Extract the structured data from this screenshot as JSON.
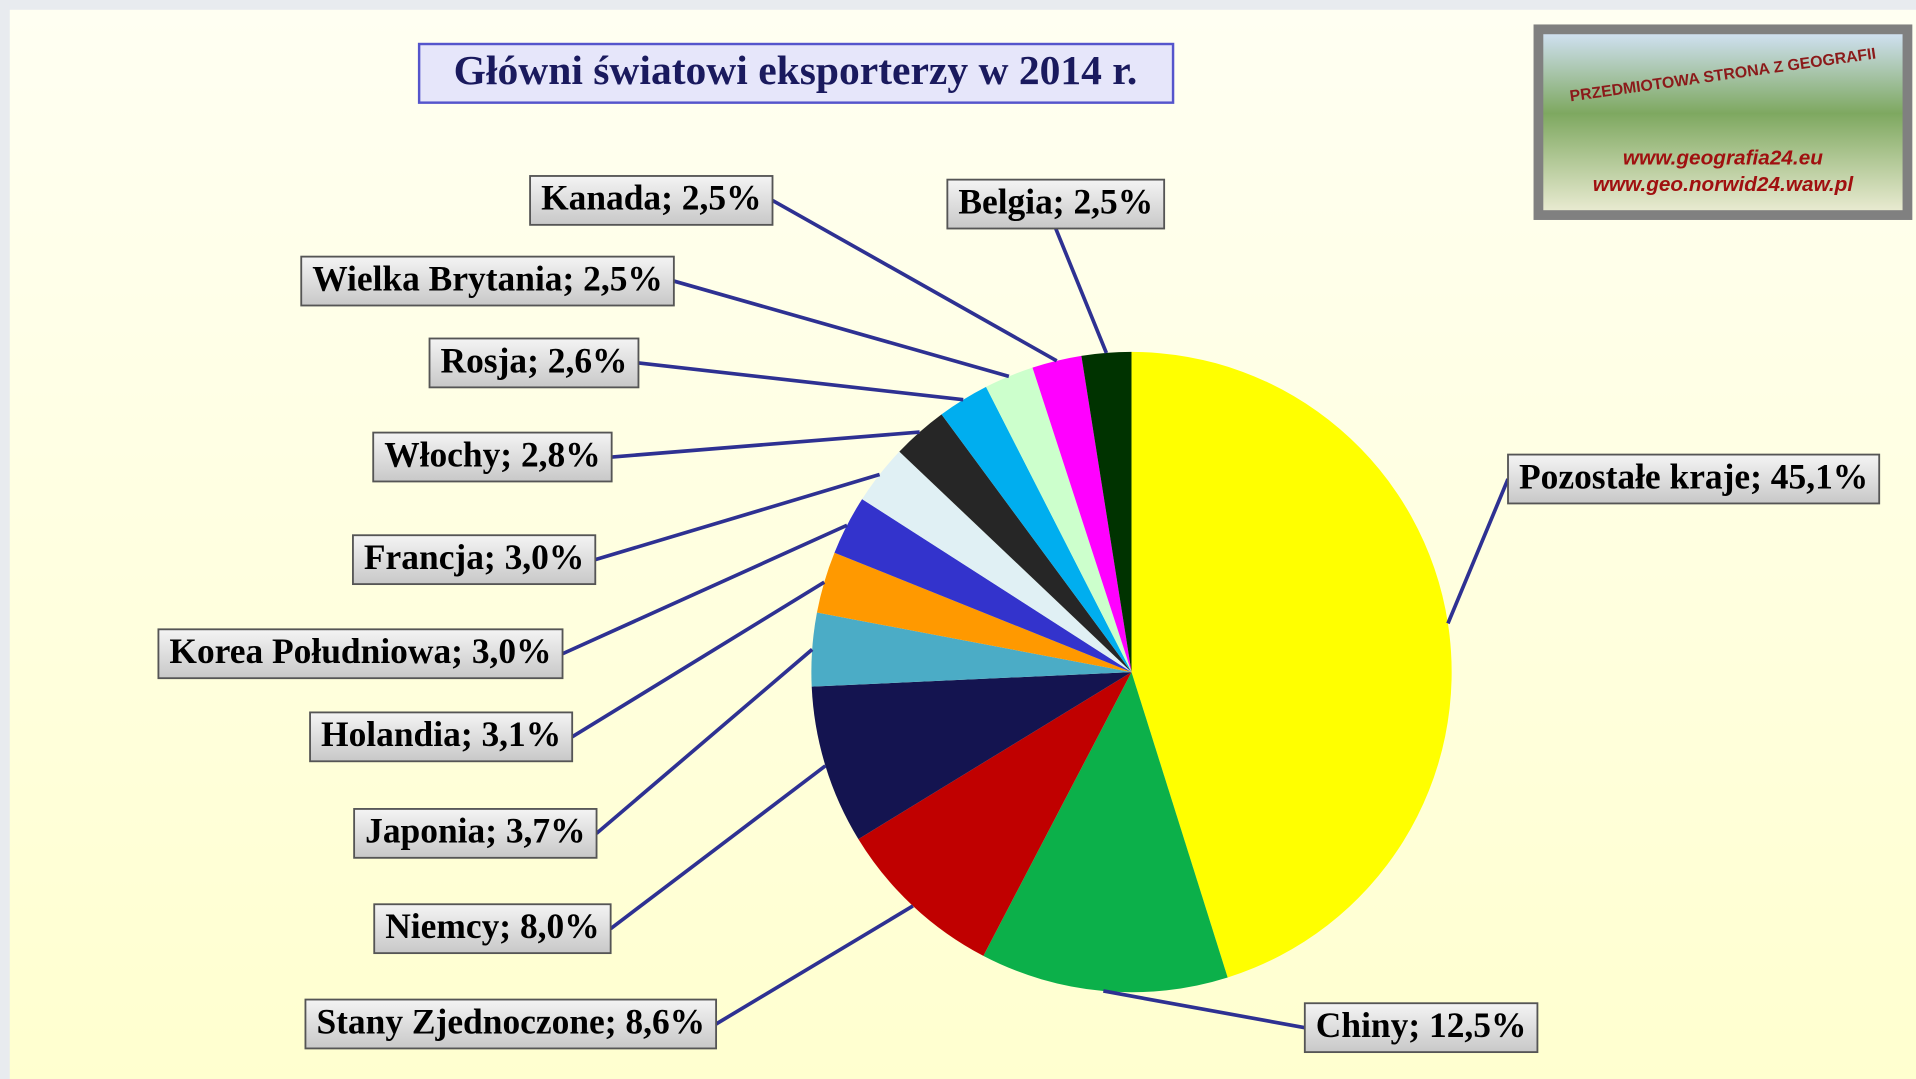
{
  "chart_data": {
    "type": "pie",
    "title": "Główni światowi eksporterzy w 2014 r.",
    "values": [
      45.1,
      12.5,
      8.6,
      8.0,
      3.7,
      3.1,
      3.0,
      3.0,
      2.8,
      2.6,
      2.5,
      2.5,
      2.5
    ],
    "value_labels": [
      "Pozostałe kraje; 45,1%",
      "Chiny; 12,5%",
      "Stany Zjednoczone; 8,6%",
      "Niemcy; 8,0%",
      "Japonia; 3,7%",
      "Holandia; 3,1%",
      "Korea Południowa; 3,0%",
      "Francja; 3,0%",
      "Włochy; 2,8%",
      "Rosja; 2,6%",
      "Wielka Brytania; 2,5%",
      "Kanada; 2,5%",
      "Belgia; 2,5%"
    ],
    "colors": [
      "#ffff00",
      "#0cb04a",
      "#c00000",
      "#141450",
      "#4bacc6",
      "#ff9900",
      "#3333cc",
      "#e0f0f4",
      "#262626",
      "#00aeef",
      "#ccffcc",
      "#ff00ff",
      "#003300"
    ]
  },
  "logo": {
    "title": "PRZEDMIOTOWA STRONA Z GEOGRAFII",
    "urls": [
      "www.geografia24.eu",
      "www.geo.norwid24.waw.pl"
    ]
  }
}
